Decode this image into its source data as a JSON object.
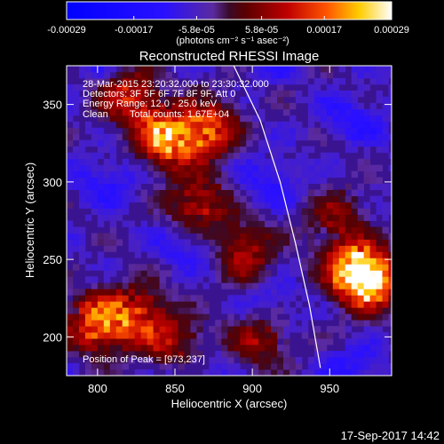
{
  "colorbar": {
    "tick_labels": [
      "-0.00029",
      "-0.00017",
      "-5.8e-05",
      "5.8e-05",
      "0.00017",
      "0.00029"
    ],
    "tick_values": [
      -0.00029,
      -0.00017,
      -5.8e-05,
      5.8e-05,
      0.00017,
      0.00029
    ],
    "range": [
      -0.00029,
      0.00029
    ],
    "units_label": "(photons cm⁻² s⁻¹ asec⁻²)"
  },
  "chart_data": {
    "type": "heatmap",
    "title": "Reconstructed RHESSI Image",
    "xlabel": "Heliocentric X (arcsec)",
    "ylabel": "Heliocentric Y (arcsec)",
    "xlim": [
      780,
      990
    ],
    "ylim": [
      175,
      375
    ],
    "x_ticks": [
      800,
      850,
      900,
      950
    ],
    "y_ticks": [
      200,
      250,
      300,
      350
    ],
    "x_tick_labels": [
      "800",
      "850",
      "900",
      "950"
    ],
    "y_tick_labels": [
      "200",
      "250",
      "300",
      "350"
    ],
    "limb_curve": [
      [
        888,
        375
      ],
      [
        905,
        340
      ],
      [
        918,
        300
      ],
      [
        928,
        260
      ],
      [
        937,
        220
      ],
      [
        944,
        180
      ]
    ],
    "peak_position": [
      973,
      237
    ],
    "bright_sources": [
      {
        "x": 845,
        "y": 330,
        "intensity": 0.9
      },
      {
        "x": 870,
        "y": 335,
        "intensity": 0.75
      },
      {
        "x": 820,
        "y": 355,
        "intensity": 0.55
      },
      {
        "x": 800,
        "y": 210,
        "intensity": 0.85
      },
      {
        "x": 825,
        "y": 215,
        "intensity": 0.6
      },
      {
        "x": 975,
        "y": 238,
        "intensity": 1.0
      },
      {
        "x": 965,
        "y": 245,
        "intensity": 0.7
      },
      {
        "x": 865,
        "y": 285,
        "intensity": 0.5
      },
      {
        "x": 895,
        "y": 255,
        "intensity": 0.45
      },
      {
        "x": 955,
        "y": 275,
        "intensity": 0.4
      },
      {
        "x": 905,
        "y": 200,
        "intensity": 0.4
      },
      {
        "x": 850,
        "y": 195,
        "intensity": 0.45
      }
    ],
    "annotations": {
      "time_range": "28-Mar-2015 23:20:32.000 to 23:30:32.000",
      "detectors": "Detectors: 3F 5F 6F 7F 8F 9F, Att 0",
      "energy": "Energy Range: 12.0 - 25.0 keV",
      "method": "Clean",
      "counts": "Total counts: 1.67E+04",
      "peak": "Position of Peak = [973,237]"
    }
  },
  "footer": {
    "timestamp": "17-Sep-2017 14:42"
  }
}
